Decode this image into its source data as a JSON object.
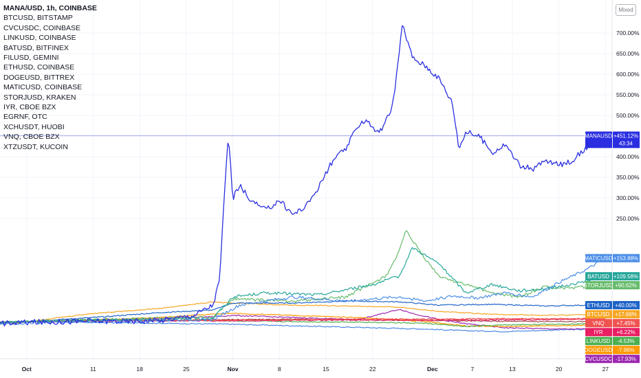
{
  "legend": {
    "main": "MANA/USD, 1h, COINBASE",
    "items": [
      "BTCUSD, BITSTAMP",
      "CVCUSDC, COINBASE",
      "LINKUSD, COINBASE",
      "BATUSD, BITFINEX",
      "FILUSD, GEMINI",
      "ETHUSD, COINBASE",
      "DOGEUSD, BITTREX",
      "MATICUSD, COINBASE",
      "STORJUSD, KRAKEN",
      "IYR, CBOE BZX",
      "EGRNF, OTC",
      "XCHUSDT, HUOBI",
      "VNQ, CBOE BZX",
      "XTZUSDT, KUCOIN"
    ]
  },
  "scale_mode": "Mixed",
  "mana_countdown": "43:34",
  "chart_data": {
    "type": "line",
    "y_unit": "%",
    "ylim": [
      0,
      760
    ],
    "y_ticks": [
      250,
      300,
      350,
      400,
      450,
      500,
      550,
      600,
      650,
      700
    ],
    "y_tick_labels": [
      "250.00%",
      "300.00%",
      "350.00%",
      "400.00%",
      "450.00%",
      "500.00%",
      "550.00%",
      "600.00%",
      "650.00%",
      "700.00%"
    ],
    "x_ticks": [
      {
        "label": "Oct",
        "day": 0,
        "bold": true
      },
      {
        "label": "11",
        "day": 10,
        "bold": false
      },
      {
        "label": "18",
        "day": 17,
        "bold": false
      },
      {
        "label": "25",
        "day": 24,
        "bold": false
      },
      {
        "label": "Nov",
        "day": 31,
        "bold": true
      },
      {
        "label": "8",
        "day": 38,
        "bold": false
      },
      {
        "label": "15",
        "day": 45,
        "bold": false
      },
      {
        "label": "22",
        "day": 52,
        "bold": false
      },
      {
        "label": "Dec",
        "day": 61,
        "bold": true
      },
      {
        "label": "7",
        "day": 67,
        "bold": false
      },
      {
        "label": "13",
        "day": 73,
        "bold": false
      },
      {
        "label": "20",
        "day": 80,
        "bold": false
      },
      {
        "label": "27",
        "day": 87,
        "bold": false
      }
    ],
    "grid": true,
    "series": [
      {
        "name": "MANAUSD",
        "color": "#2a2ee0",
        "width": 1.3,
        "label": "+451.12%",
        "days": [
          -4,
          0,
          5,
          10,
          15,
          20,
          25,
          28,
          29,
          29.7,
          30.3,
          31,
          32,
          34,
          36,
          38,
          40,
          42,
          44,
          46,
          48,
          50,
          51,
          53,
          55,
          56.5,
          58,
          60,
          62,
          64,
          65,
          66,
          68,
          70,
          72,
          74,
          76,
          78,
          80,
          82,
          84,
          85,
          87
        ],
        "values": [
          -4,
          -2,
          0,
          2,
          1,
          3,
          15,
          40,
          100,
          300,
          455,
          300,
          330,
          290,
          270,
          295,
          260,
          280,
          330,
          390,
          420,
          480,
          490,
          455,
          520,
          720,
          640,
          620,
          590,
          530,
          420,
          460,
          450,
          410,
          430,
          380,
          370,
          390,
          380,
          390,
          420,
          440,
          451
        ]
      },
      {
        "name": "MATICUSD",
        "color": "#4a8de8",
        "width": 1.2,
        "label": "+153.88%",
        "days": [
          -4,
          0,
          10,
          20,
          28,
          32,
          40,
          48,
          56,
          60,
          64,
          68,
          72,
          76,
          80,
          84,
          87
        ],
        "values": [
          -6,
          -3,
          0,
          3,
          5,
          40,
          60,
          50,
          60,
          50,
          62,
          58,
          70,
          60,
          95,
          125,
          154
        ]
      },
      {
        "name": "BATUSD",
        "color": "#26a69a",
        "width": 1.2,
        "label": "+109.58%",
        "days": [
          -4,
          0,
          10,
          20,
          28,
          31,
          36,
          44,
          52,
          56,
          58,
          62,
          66,
          70,
          74,
          78,
          82,
          87
        ],
        "values": [
          -2,
          0,
          3,
          5,
          8,
          60,
          70,
          65,
          90,
          110,
          180,
          140,
          70,
          90,
          75,
          80,
          90,
          110
        ]
      },
      {
        "name": "STORJUSD",
        "color": "#66bb6a",
        "width": 1.2,
        "label": "+90.62%",
        "days": [
          -4,
          0,
          10,
          20,
          28,
          31,
          40,
          48,
          54,
          56,
          57,
          60,
          62,
          66,
          70,
          74,
          78,
          82,
          87
        ],
        "values": [
          -3,
          0,
          4,
          8,
          10,
          55,
          50,
          60,
          110,
          170,
          220,
          150,
          110,
          90,
          70,
          60,
          85,
          80,
          91
        ]
      },
      {
        "name": "ETHUSD",
        "color": "#1e63c8",
        "width": 1.2,
        "label": "+40.00%",
        "days": [
          -4,
          0,
          10,
          20,
          28,
          31,
          40,
          48,
          56,
          62,
          70,
          78,
          84,
          87
        ],
        "values": [
          -2,
          0,
          10,
          22,
          28,
          45,
          45,
          50,
          48,
          40,
          42,
          38,
          40,
          40
        ]
      },
      {
        "name": "BTCUSD",
        "color": "#f6a623",
        "width": 1.2,
        "label": "+17.66%",
        "days": [
          -4,
          0,
          10,
          20,
          28,
          31,
          40,
          48,
          56,
          62,
          70,
          78,
          87
        ],
        "values": [
          -3,
          0,
          20,
          32,
          48,
          45,
          40,
          38,
          35,
          25,
          18,
          15,
          18
        ]
      },
      {
        "name": "VNQ",
        "color": "#ef5350",
        "width": 1.4,
        "label": "+7.45%",
        "days": [
          -4,
          -2,
          0,
          10,
          20,
          30,
          40,
          50,
          60,
          70,
          80,
          87
        ],
        "values": [
          -3,
          -5,
          0,
          2,
          3,
          4,
          5,
          6,
          6,
          7,
          7,
          7
        ]
      },
      {
        "name": "IYR",
        "color": "#e91e63",
        "width": 1.2,
        "label": "+6.22%",
        "days": [
          -4,
          0,
          10,
          20,
          30,
          40,
          50,
          60,
          70,
          80,
          87
        ],
        "values": [
          -2,
          0,
          1,
          2,
          2,
          3,
          4,
          3,
          4,
          5,
          6
        ]
      },
      {
        "name": "LINKUSD",
        "color": "#4caf50",
        "width": 1.2,
        "label": "-4.53%",
        "days": [
          -4,
          0,
          10,
          20,
          30,
          40,
          50,
          60,
          66,
          72,
          80,
          87
        ],
        "values": [
          -2,
          0,
          5,
          4,
          2,
          0,
          -1,
          -4,
          -12,
          -8,
          -6,
          -5
        ]
      },
      {
        "name": "DOGEUSD",
        "color": "#ff9800",
        "width": 1.2,
        "label": "-7.96%",
        "days": [
          -4,
          0,
          10,
          20,
          28,
          31,
          40,
          50,
          60,
          66,
          72,
          80,
          87
        ],
        "values": [
          -1,
          0,
          4,
          10,
          18,
          20,
          15,
          10,
          0,
          -10,
          -12,
          -10,
          -8
        ]
      },
      {
        "name": "CVCUSDC",
        "color": "#9c27b0",
        "width": 1.2,
        "label": "-17.93%",
        "days": [
          -4,
          0,
          10,
          20,
          28,
          31,
          40,
          50,
          56,
          58,
          62,
          66,
          72,
          80,
          87
        ],
        "values": [
          -1,
          0,
          5,
          8,
          12,
          15,
          10,
          5,
          30,
          20,
          5,
          -5,
          -15,
          -18,
          -18
        ]
      },
      {
        "name": "EGRNF",
        "color": "#8b2e2e",
        "width": 1.0,
        "label": "",
        "days": [
          -4,
          0,
          10,
          20,
          30,
          40,
          50,
          60,
          70,
          80,
          87
        ],
        "values": [
          -1,
          0,
          2,
          3,
          5,
          6,
          4,
          3,
          1,
          0,
          0
        ]
      },
      {
        "name": "XTZUSDT",
        "color": "#3f7fe0",
        "width": 1.1,
        "label": "",
        "days": [
          -4,
          0,
          10,
          20,
          30,
          40,
          50,
          60,
          66,
          72,
          80,
          87
        ],
        "values": [
          -2,
          0,
          -2,
          -4,
          -6,
          -10,
          -14,
          -18,
          -22,
          -24,
          -20,
          -18
        ]
      }
    ],
    "labeled_order": [
      "MANAUSD",
      "MATICUSD",
      "BATUSD",
      "STORJUSD",
      "ETHUSD",
      "BTCUSD",
      "VNQ",
      "IYR",
      "LINKUSD",
      "DOGEUSD",
      "CVCUSDC"
    ]
  }
}
